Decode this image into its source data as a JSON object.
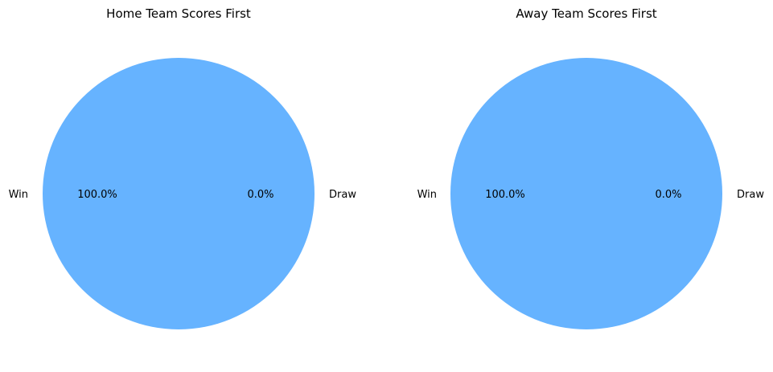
{
  "chart_data": [
    {
      "type": "pie",
      "title": "Home Team Scores First",
      "categories": [
        "Win",
        "Draw"
      ],
      "values": [
        100.0,
        0.0
      ],
      "percent_labels": [
        "100.0%",
        "0.0%"
      ],
      "colors": [
        "#66b3ff",
        "#ff9999"
      ]
    },
    {
      "type": "pie",
      "title": "Away Team Scores First",
      "categories": [
        "Win",
        "Draw"
      ],
      "values": [
        100.0,
        0.0
      ],
      "percent_labels": [
        "100.0%",
        "0.0%"
      ],
      "colors": [
        "#66b3ff",
        "#ff9999"
      ]
    }
  ]
}
